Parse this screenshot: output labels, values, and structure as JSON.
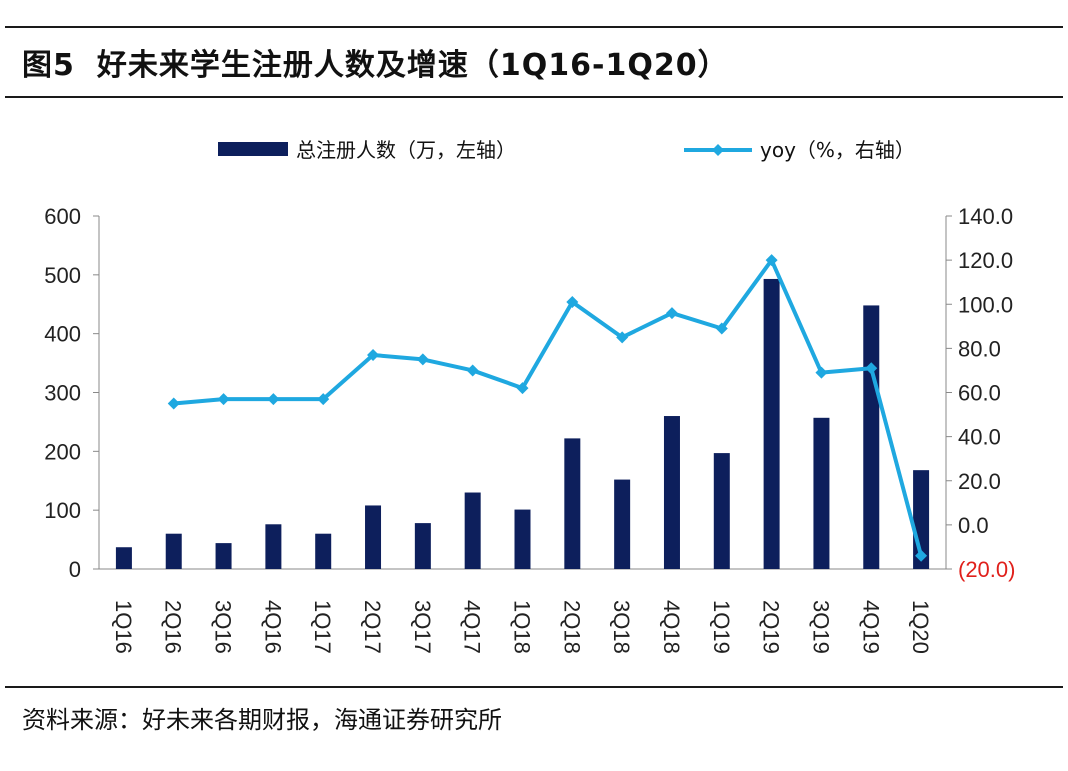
{
  "header": {
    "figure_no": "图5",
    "title": "好未来学生注册人数及增速（1Q16-1Q20）"
  },
  "footer": {
    "source": "资料来源：好未来各期财报，海通证券研究所"
  },
  "colors": {
    "bar": "#0d1f5c",
    "line": "#1fa8e0",
    "negative_tick": "#e0201b"
  },
  "chart_data": {
    "type": "bar+line",
    "categories": [
      "1Q16",
      "2Q16",
      "3Q16",
      "4Q16",
      "1Q17",
      "2Q17",
      "3Q17",
      "4Q17",
      "1Q18",
      "2Q18",
      "3Q18",
      "4Q18",
      "1Q19",
      "2Q19",
      "3Q19",
      "4Q19",
      "1Q20"
    ],
    "series": [
      {
        "name": "总注册人数（万，左轴）",
        "type": "bar",
        "axis": "left",
        "values": [
          37,
          60,
          44,
          76,
          60,
          108,
          78,
          130,
          101,
          222,
          152,
          260,
          197,
          493,
          257,
          448,
          168
        ]
      },
      {
        "name": "yoy（%，右轴）",
        "type": "line",
        "axis": "right",
        "values": [
          null,
          55,
          57,
          57,
          57,
          77,
          75,
          70,
          62,
          101,
          85,
          96,
          89,
          120,
          69,
          71,
          -14
        ]
      }
    ],
    "y_left": {
      "min": 0,
      "max": 600,
      "ticks": [
        "0",
        "100",
        "200",
        "300",
        "400",
        "500",
        "600"
      ]
    },
    "y_right": {
      "min": -20,
      "max": 140,
      "ticks": [
        "(20.0)",
        "0.0",
        "20.0",
        "40.0",
        "60.0",
        "80.0",
        "100.0",
        "120.0",
        "140.0"
      ]
    },
    "legend_position": "top",
    "grid": false
  }
}
